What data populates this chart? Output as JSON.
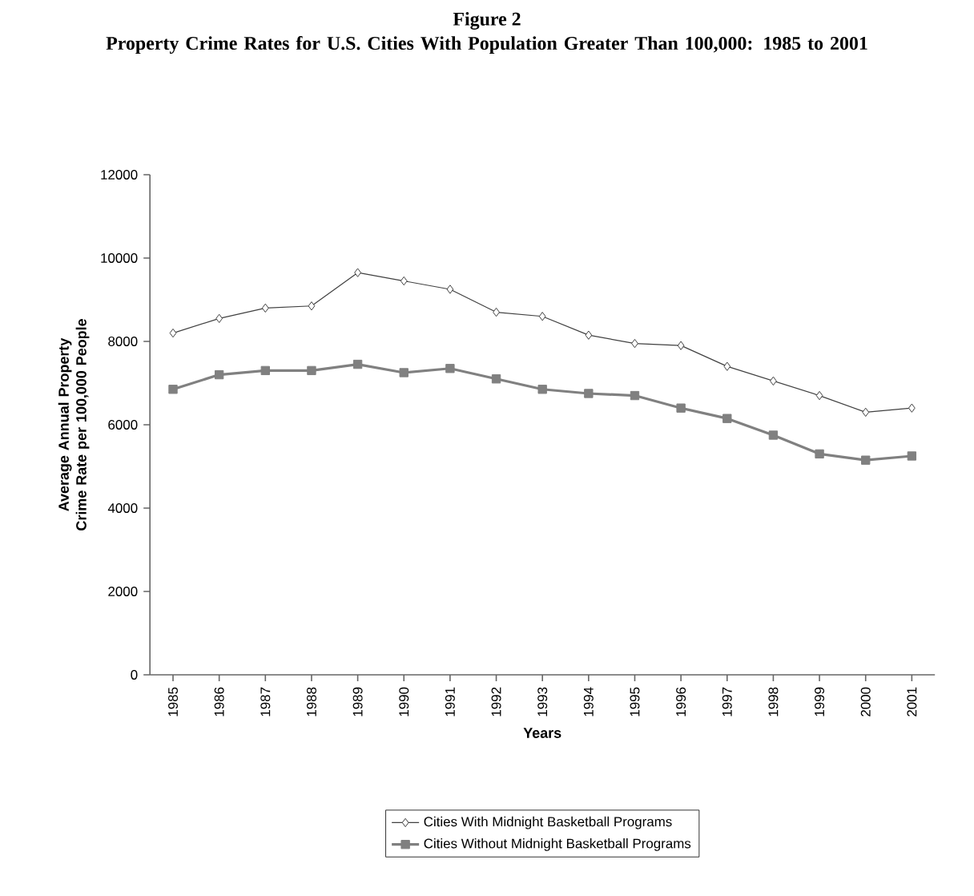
{
  "chart_data": {
    "type": "line",
    "title": "Figure 2",
    "subtitle": "Property Crime Rates for U.S. Cities With Population Greater Than 100,000: 1985 to 2001",
    "xlabel": "Years",
    "ylabel": "Average Annual Property Crime Rate per 100,000 People",
    "categories": [
      "1985",
      "1986",
      "1987",
      "1988",
      "1989",
      "1990",
      "1991",
      "1992",
      "1993",
      "1994",
      "1995",
      "1996",
      "1997",
      "1998",
      "1999",
      "2000",
      "2001"
    ],
    "series": [
      {
        "name": "Cities With Midnight Basketball Programs",
        "color": "#404040",
        "marker": "diamond",
        "values": [
          8200,
          8550,
          8800,
          8850,
          9650,
          9450,
          9250,
          8700,
          8600,
          8150,
          7950,
          7900,
          7400,
          7050,
          6700,
          6300,
          6400
        ]
      },
      {
        "name": "Cities Without Midnight Basketball Programs",
        "color": "#808080",
        "marker": "square",
        "values": [
          6850,
          7200,
          7300,
          7300,
          7450,
          7250,
          7350,
          7100,
          6850,
          6750,
          6700,
          6400,
          6150,
          5750,
          5300,
          5150,
          5250
        ]
      }
    ],
    "ylim": [
      0,
      12000
    ],
    "yticks": [
      0,
      2000,
      4000,
      6000,
      8000,
      10000,
      12000
    ],
    "grid": false,
    "legend": "bottom",
    "line_style": "solid"
  }
}
